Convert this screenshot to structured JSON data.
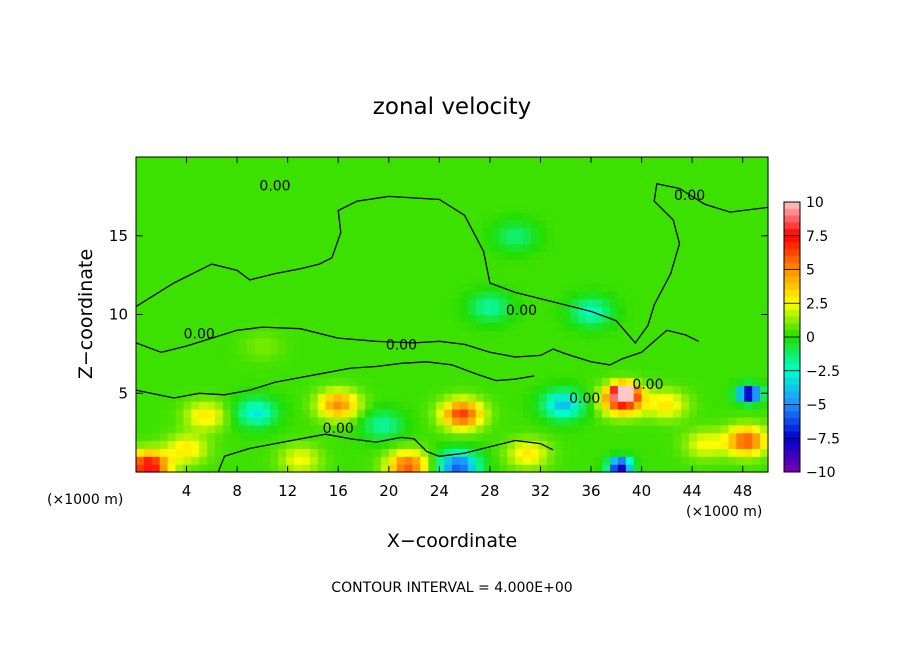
{
  "chart_data": {
    "type": "heatmap",
    "title": "zonal velocity",
    "xlabel": "X−coordinate",
    "ylabel": "Z−coordinate",
    "x_unit": "(×1000 m)",
    "x_unit_right": "(×1000 m)",
    "footer": "CONTOUR INTERVAL = 4.000E+00",
    "xlim": [
      0,
      50
    ],
    "ylim": [
      0,
      20
    ],
    "x_ticks": [
      4,
      8,
      12,
      16,
      20,
      24,
      28,
      32,
      36,
      40,
      44,
      48
    ],
    "y_ticks": [
      5,
      10,
      15
    ],
    "contour_label": "0.00",
    "colorbar": {
      "ticks": [
        10,
        7.5,
        5,
        2.5,
        0,
        -2.5,
        -5,
        -7.5,
        -10
      ],
      "tick_labels": [
        "10",
        "7.5",
        "5",
        "2.5",
        "0",
        "−2.5",
        "−5",
        "−7.5",
        "−10"
      ],
      "colors": [
        "#ffc8c8",
        "#ff0000",
        "#ff8c00",
        "#ffff00",
        "#22dd00",
        "#00ffcc",
        "#1e90ff",
        "#0000cd",
        "#7b00b0"
      ]
    },
    "background_value": 0.3,
    "features": [
      {
        "x": 1,
        "z": 0.4,
        "value": 8
      },
      {
        "x": 4,
        "z": 1.5,
        "value": 3
      },
      {
        "x": 5.5,
        "z": 3.6,
        "value": 3
      },
      {
        "x": 9.5,
        "z": 3.8,
        "value": -3
      },
      {
        "x": 13,
        "z": 0.8,
        "value": 2.5
      },
      {
        "x": 16,
        "z": 4.3,
        "value": 5
      },
      {
        "x": 19.5,
        "z": 3,
        "value": -2
      },
      {
        "x": 21.5,
        "z": 0.4,
        "value": 6
      },
      {
        "x": 25.5,
        "z": 0.4,
        "value": -6
      },
      {
        "x": 25.8,
        "z": 3.7,
        "value": 6.5
      },
      {
        "x": 31,
        "z": 1.2,
        "value": 3
      },
      {
        "x": 33.8,
        "z": 4.3,
        "value": -4
      },
      {
        "x": 38.5,
        "z": 4.6,
        "value": 7.5
      },
      {
        "x": 38.6,
        "z": 5.1,
        "value": 10
      },
      {
        "x": 38.3,
        "z": 0.4,
        "value": -9
      },
      {
        "x": 42,
        "z": 4.3,
        "value": 3
      },
      {
        "x": 45,
        "z": 1.8,
        "value": 2.5
      },
      {
        "x": 48.3,
        "z": 2,
        "value": 6
      },
      {
        "x": 48.5,
        "z": 5,
        "value": -9.5
      },
      {
        "x": 28,
        "z": 10.5,
        "value": -2
      },
      {
        "x": 36,
        "z": 10.2,
        "value": -2.5
      },
      {
        "x": 30,
        "z": 15,
        "value": -1.5
      },
      {
        "x": 10,
        "z": 8,
        "value": 1
      }
    ],
    "contour_zero_lines": [
      [
        [
          0,
          10.5
        ],
        [
          3,
          12
        ],
        [
          6,
          13.2
        ],
        [
          8,
          12.8
        ],
        [
          9,
          12.2
        ],
        [
          11,
          12.6
        ],
        [
          13,
          12.9
        ],
        [
          14.5,
          13.2
        ],
        [
          15.5,
          13.6
        ],
        [
          16.2,
          15.2
        ],
        [
          16,
          16.6
        ],
        [
          17.5,
          17.2
        ],
        [
          20,
          17.5
        ],
        [
          24,
          17.3
        ],
        [
          26,
          16.3
        ],
        [
          27.5,
          14
        ],
        [
          28,
          12
        ],
        [
          30,
          11.4
        ],
        [
          33,
          10.8
        ],
        [
          36,
          10.2
        ],
        [
          38,
          9.6
        ],
        [
          39.5,
          8.2
        ],
        [
          40.5,
          9.3
        ],
        [
          41,
          10.6
        ],
        [
          42.3,
          12.6
        ],
        [
          43,
          14.5
        ],
        [
          42.5,
          16
        ],
        [
          41,
          17.2
        ],
        [
          41.2,
          18.3
        ],
        [
          43,
          18
        ],
        [
          45,
          17
        ],
        [
          47,
          16.5
        ],
        [
          50,
          16.8
        ]
      ],
      [
        [
          0,
          8.2
        ],
        [
          2,
          7.6
        ],
        [
          4,
          8
        ],
        [
          6,
          8.5
        ],
        [
          8,
          9
        ],
        [
          10,
          9.2
        ],
        [
          13,
          9.1
        ],
        [
          16,
          8.5
        ],
        [
          19,
          8.3
        ],
        [
          22,
          8.2
        ],
        [
          24,
          8.3
        ],
        [
          26,
          8.1
        ],
        [
          28,
          7.6
        ],
        [
          30,
          7.3
        ],
        [
          32,
          7.4
        ],
        [
          33,
          7.8
        ],
        [
          34,
          7.5
        ],
        [
          36,
          7
        ],
        [
          37.5,
          6.8
        ],
        [
          38.5,
          7.2
        ],
        [
          40,
          7.6
        ],
        [
          41,
          8.3
        ],
        [
          42,
          9
        ],
        [
          43.5,
          8.7
        ],
        [
          44.5,
          8.3
        ]
      ],
      [
        [
          0,
          5.2
        ],
        [
          3,
          4.7
        ],
        [
          5,
          5
        ],
        [
          7,
          4.9
        ],
        [
          9,
          5.2
        ],
        [
          11,
          5.7
        ],
        [
          13,
          6
        ],
        [
          15,
          6.3
        ],
        [
          17,
          6.6
        ],
        [
          19,
          6.7
        ],
        [
          21,
          6.9
        ],
        [
          23,
          7
        ],
        [
          25,
          6.8
        ],
        [
          27,
          6.2
        ],
        [
          28.5,
          5.8
        ],
        [
          30,
          5.9
        ],
        [
          31.5,
          6.1
        ]
      ],
      [
        [
          6.5,
          0
        ],
        [
          7,
          1
        ],
        [
          9,
          1.5
        ],
        [
          11,
          1.8
        ],
        [
          13,
          2.1
        ],
        [
          15,
          2.4
        ],
        [
          17,
          2.1
        ],
        [
          19,
          1.9
        ],
        [
          21,
          2.2
        ],
        [
          22,
          2.1
        ],
        [
          23,
          1.3
        ],
        [
          24,
          1
        ],
        [
          26,
          1.2
        ],
        [
          28,
          1.6
        ],
        [
          30,
          2
        ],
        [
          32,
          1.8
        ],
        [
          33,
          1.4
        ]
      ]
    ],
    "contour_label_positions": [
      {
        "x": 11,
        "z": 18.2
      },
      {
        "x": 43.8,
        "z": 17.6
      },
      {
        "x": 30.5,
        "z": 10.3
      },
      {
        "x": 5,
        "z": 8.8
      },
      {
        "x": 21,
        "z": 8.1
      },
      {
        "x": 16,
        "z": 2.8
      },
      {
        "x": 40.5,
        "z": 5.6
      },
      {
        "x": 35.5,
        "z": 4.7
      }
    ]
  }
}
